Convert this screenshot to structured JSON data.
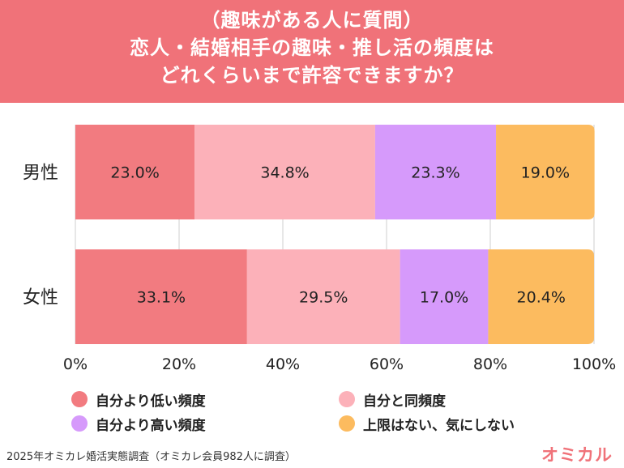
{
  "header": {
    "lines": [
      "（趣味がある人に質問）",
      "恋人・結婚相手の趣味・推し活の頻度は",
      "どれくらいまで許容できますか？"
    ]
  },
  "chart_data": {
    "type": "bar",
    "orientation": "horizontal-stacked-100",
    "categories": [
      "男性",
      "女性"
    ],
    "series": [
      {
        "name": "自分より低い頻度",
        "values": [
          23.0,
          33.1
        ],
        "labels": [
          "23.0%",
          "33.1%"
        ],
        "color": "#f27b80"
      },
      {
        "name": "自分と同頻度",
        "values": [
          34.8,
          29.5
        ],
        "labels": [
          "34.8%",
          "29.5%"
        ],
        "color": "#fcb1b9"
      },
      {
        "name": "自分より高い頻度",
        "values": [
          23.3,
          17.0
        ],
        "labels": [
          "23.3%",
          "17.0%"
        ],
        "color": "#d69afb"
      },
      {
        "name": "上限はない、気にしない",
        "values": [
          19.0,
          20.4
        ],
        "labels": [
          "19.0%",
          "20.4%"
        ],
        "color": "#fcbb5f"
      }
    ],
    "xticks": [
      "0%",
      "20%",
      "40%",
      "60%",
      "80%",
      "100%"
    ],
    "xlim": [
      0,
      100
    ],
    "grid": true,
    "legend": "bottom"
  },
  "footer": {
    "source": "2025年オミカレ婚活実態調査（オミカレ会員982人に調査）",
    "brand": "オミカル"
  }
}
